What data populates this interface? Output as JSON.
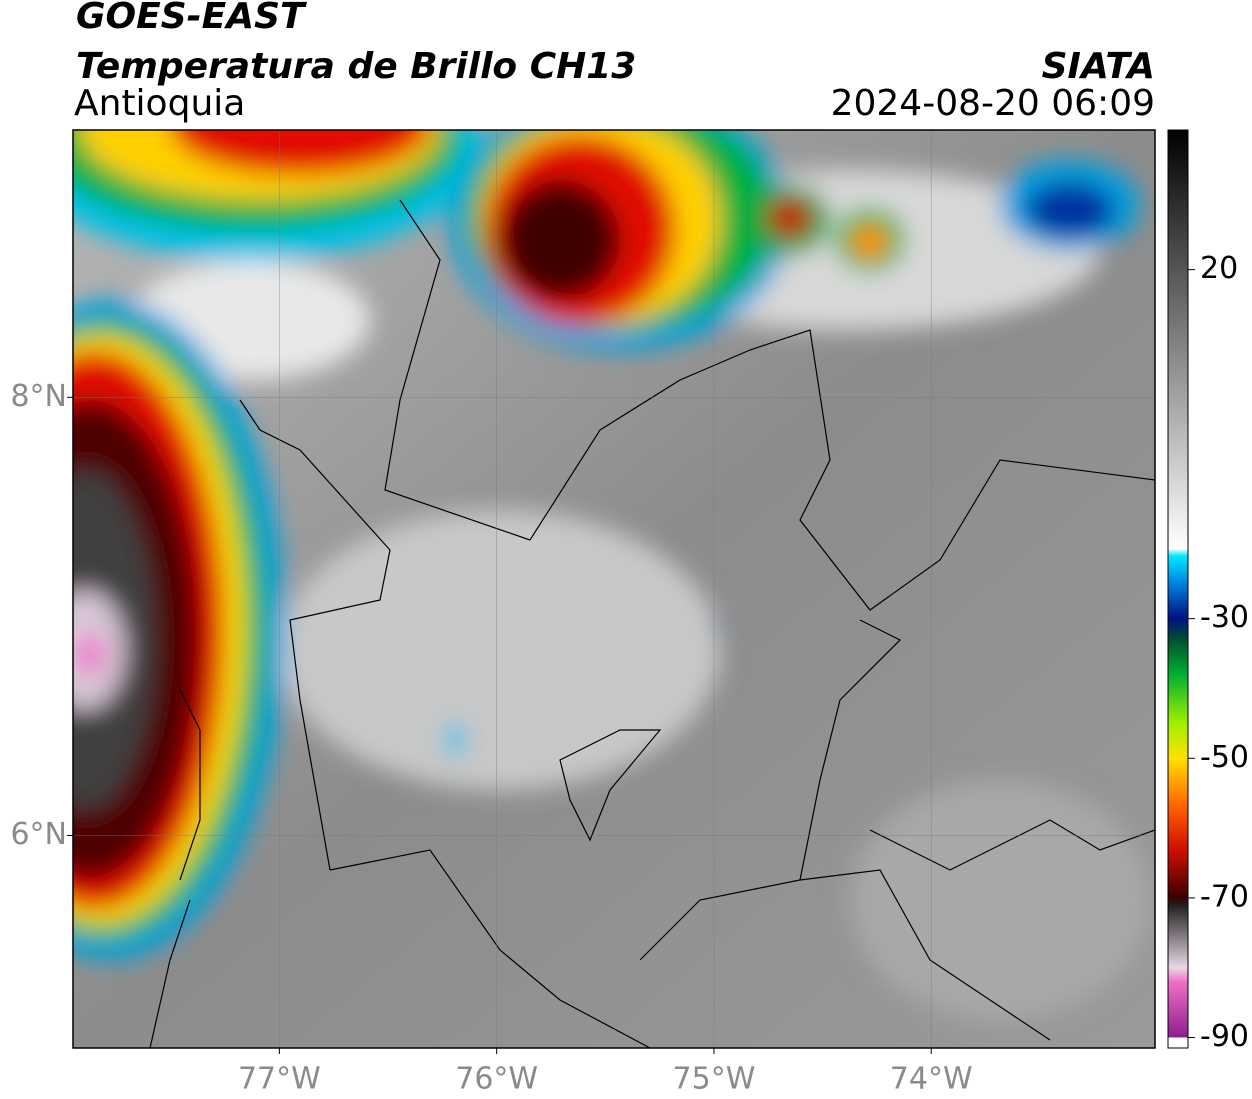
{
  "header": {
    "title": "GOES-EAST",
    "subtitle": "Temperatura de Brillo CH13",
    "region": "Antioquia",
    "source": "SIATA",
    "timestamp": "2024-08-20 06:09"
  },
  "map": {
    "xlim": [
      -77.95,
      -72.97
    ],
    "ylim": [
      5.03,
      9.22
    ],
    "xticks": [
      {
        "value": -77,
        "label": "77°W"
      },
      {
        "value": -76,
        "label": "76°W"
      },
      {
        "value": -75,
        "label": "75°W"
      },
      {
        "value": -74,
        "label": "74°W"
      }
    ],
    "yticks": [
      {
        "value": 8,
        "label": "8°N"
      },
      {
        "value": 6,
        "label": "6°N"
      }
    ],
    "grid": true
  },
  "colorbar": {
    "lim": [
      -91.5,
      40
    ],
    "ticks": [
      20,
      -30,
      -50,
      -70,
      -90
    ],
    "stops": [
      {
        "value": -91.5,
        "color": "#ffffff"
      },
      {
        "value": -90,
        "color": "#ffffff"
      },
      {
        "value": -90,
        "color": "#8e1e8e"
      },
      {
        "value": -82,
        "color": "#f070c8"
      },
      {
        "value": -80,
        "color": "#e8d8e4"
      },
      {
        "value": -71,
        "color": "#202020"
      },
      {
        "value": -70,
        "color": "#3a0000"
      },
      {
        "value": -63,
        "color": "#d01000"
      },
      {
        "value": -57,
        "color": "#ff6000"
      },
      {
        "value": -50,
        "color": "#ffe000"
      },
      {
        "value": -45,
        "color": "#a0f000"
      },
      {
        "value": -38,
        "color": "#00b030"
      },
      {
        "value": -33,
        "color": "#005030"
      },
      {
        "value": -30,
        "color": "#001080"
      },
      {
        "value": -25,
        "color": "#0080e0"
      },
      {
        "value": -21,
        "color": "#00e8ff"
      },
      {
        "value": -20,
        "color": "#ffffff"
      },
      {
        "value": 40,
        "color": "#000000"
      }
    ]
  }
}
